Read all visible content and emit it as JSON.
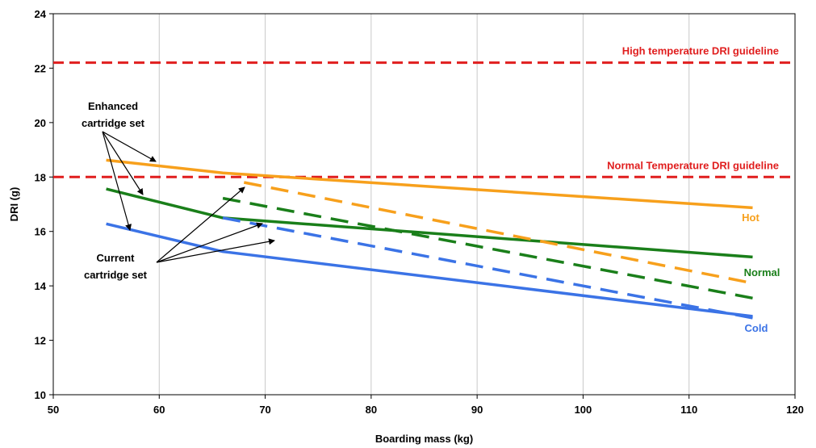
{
  "chart_data": {
    "type": "line",
    "xlabel": "Boarding mass (kg)",
    "ylabel": "DRI (g)",
    "xlim": [
      50,
      120
    ],
    "ylim": [
      10,
      24
    ],
    "xticks": [
      50,
      60,
      70,
      80,
      90,
      100,
      110,
      120
    ],
    "yticks": [
      10,
      12,
      14,
      16,
      18,
      20,
      22,
      24
    ],
    "grid": "vertical",
    "colors": {
      "hot": "#f7a01c",
      "normal": "#1a7f1a",
      "cold": "#3b73e6",
      "guideline": "#e01e1e"
    },
    "series": [
      {
        "group": "Enhanced cartridge set",
        "label": "Hot",
        "color": "#f7a01c",
        "dash": false,
        "points": [
          [
            55,
            18.62
          ],
          [
            66,
            18.15
          ],
          [
            116,
            16.87
          ]
        ]
      },
      {
        "group": "Enhanced cartridge set",
        "label": "Normal",
        "color": "#1a7f1a",
        "dash": false,
        "points": [
          [
            55,
            17.56
          ],
          [
            66,
            16.5
          ],
          [
            116,
            15.06
          ]
        ]
      },
      {
        "group": "Enhanced cartridge set",
        "label": "Cold",
        "color": "#3b73e6",
        "dash": false,
        "points": [
          [
            55,
            16.28
          ],
          [
            66,
            15.26
          ],
          [
            116,
            12.88
          ]
        ]
      },
      {
        "group": "Current cartridge set",
        "label": "Hot",
        "color": "#f7a01c",
        "dash": true,
        "points": [
          [
            68,
            17.8
          ],
          [
            116,
            14.1
          ]
        ]
      },
      {
        "group": "Current cartridge set",
        "label": "Normal",
        "color": "#1a7f1a",
        "dash": true,
        "points": [
          [
            66,
            17.22
          ],
          [
            116,
            13.55
          ]
        ]
      },
      {
        "group": "Current cartridge set",
        "label": "Cold",
        "color": "#3b73e6",
        "dash": true,
        "points": [
          [
            66,
            16.5
          ],
          [
            116,
            12.82
          ]
        ]
      }
    ],
    "guidelines": [
      {
        "label": "High temperature DRI guideline",
        "y": 22.2
      },
      {
        "label": "Normal Temperature DRI guideline",
        "y": 18.0
      }
    ],
    "annotations": {
      "enhanced": [
        "Enhanced",
        "cartridge set"
      ],
      "current": [
        "Current",
        "cartridge set"
      ]
    },
    "series_labels": [
      {
        "text": "Hot",
        "color": "#f7a01c"
      },
      {
        "text": "Normal",
        "color": "#1a7f1a"
      },
      {
        "text": "Cold",
        "color": "#3b73e6"
      }
    ]
  }
}
